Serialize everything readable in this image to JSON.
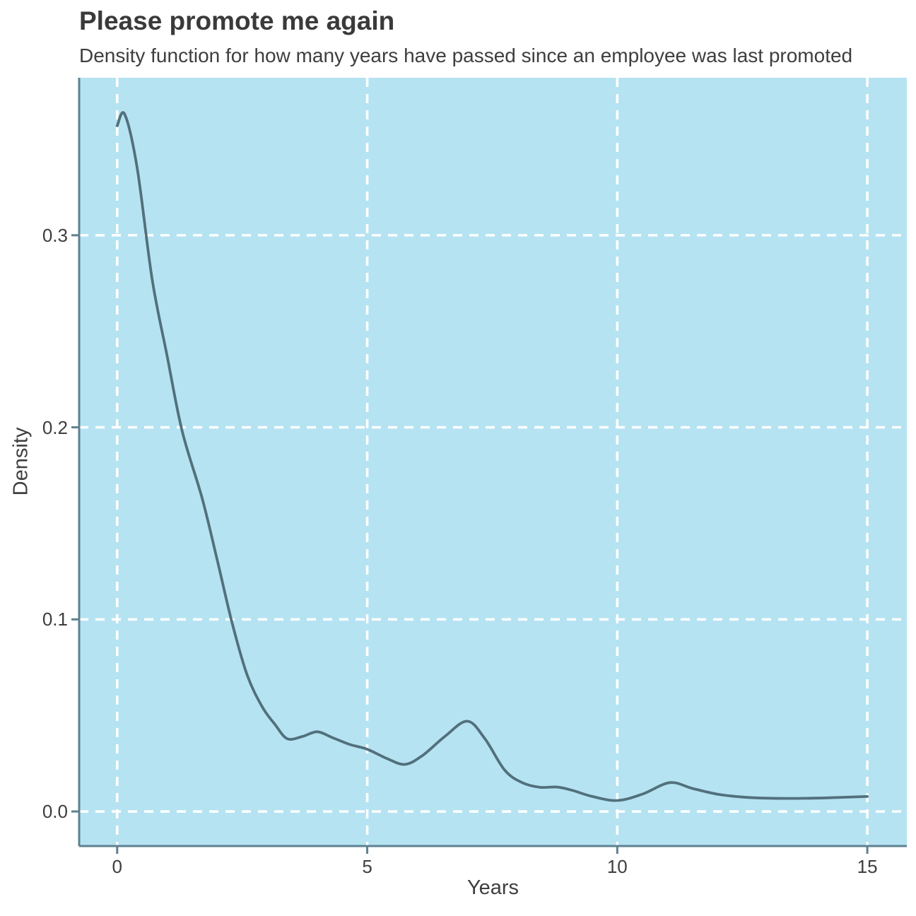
{
  "chart_data": {
    "type": "line",
    "title": "Please promote me again",
    "subtitle": "Density function for how many years have passed since an employee was last promoted",
    "xlabel": "Years",
    "ylabel": "Density",
    "x_ticks": [
      0,
      5,
      10,
      15
    ],
    "x_tick_labels": [
      "0",
      "5",
      "10",
      "15"
    ],
    "y_ticks": [
      0.0,
      0.1,
      0.2,
      0.3
    ],
    "y_tick_labels": [
      "0.0",
      "0.1",
      "0.2",
      "0.3"
    ],
    "xlim": [
      -0.76,
      15.79
    ],
    "ylim": [
      -0.018,
      0.382
    ],
    "grid": {
      "style": "dashed",
      "color": "#FFFFFF",
      "on": true
    },
    "legend": "none",
    "series": [
      {
        "name": "years-since-last-promotion-density",
        "points": [
          [
            0.0,
            0.357
          ],
          [
            0.15,
            0.363
          ],
          [
            0.4,
            0.335
          ],
          [
            0.7,
            0.277
          ],
          [
            1.0,
            0.237
          ],
          [
            1.3,
            0.198
          ],
          [
            1.7,
            0.163
          ],
          [
            2.0,
            0.131
          ],
          [
            2.3,
            0.098
          ],
          [
            2.6,
            0.071
          ],
          [
            2.9,
            0.0545
          ],
          [
            3.15,
            0.0455
          ],
          [
            3.4,
            0.0379
          ],
          [
            3.7,
            0.039
          ],
          [
            4.0,
            0.0415
          ],
          [
            4.3,
            0.0385
          ],
          [
            4.65,
            0.0349
          ],
          [
            5.0,
            0.0324
          ],
          [
            5.4,
            0.0275
          ],
          [
            5.75,
            0.0245
          ],
          [
            6.1,
            0.029
          ],
          [
            6.55,
            0.039
          ],
          [
            7.0,
            0.047
          ],
          [
            7.35,
            0.038
          ],
          [
            7.75,
            0.0215
          ],
          [
            8.1,
            0.015
          ],
          [
            8.45,
            0.0126
          ],
          [
            8.8,
            0.0127
          ],
          [
            9.1,
            0.011
          ],
          [
            9.5,
            0.0078
          ],
          [
            10.0,
            0.0057
          ],
          [
            10.5,
            0.009
          ],
          [
            11.05,
            0.015
          ],
          [
            11.5,
            0.012
          ],
          [
            12.0,
            0.009
          ],
          [
            12.5,
            0.0075
          ],
          [
            13.0,
            0.0069
          ],
          [
            13.6,
            0.0068
          ],
          [
            14.2,
            0.0071
          ],
          [
            15.0,
            0.0078
          ]
        ]
      }
    ],
    "colors": {
      "panel_bg": "#B5E3F2",
      "line": "#52707C",
      "axis": "#5E8191",
      "grid": "#FFFFFF",
      "text": "#3E3E3E",
      "title_text": "#3A3A3A",
      "page_bg": "#FFFFFF"
    }
  }
}
